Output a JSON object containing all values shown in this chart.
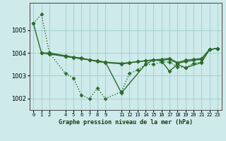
{
  "background_color": "#ceeaea",
  "grid_color": "#a0cccc",
  "line_color": "#2d6b2d",
  "marker_color": "#2d6b2d",
  "title": "Graphe pression niveau de la mer (hPa)",
  "xlim": [
    -0.5,
    23.5
  ],
  "ylim": [
    1001.5,
    1006.2
  ],
  "yticks": [
    1002,
    1003,
    1004,
    1005
  ],
  "xticks": [
    0,
    1,
    2,
    4,
    5,
    6,
    7,
    8,
    9,
    11,
    12,
    13,
    14,
    15,
    16,
    17,
    18,
    19,
    20,
    21,
    22,
    23
  ],
  "series": [
    {
      "x": [
        0,
        1,
        2,
        4,
        5,
        6,
        7,
        8,
        9,
        11,
        12,
        13,
        14,
        15,
        16,
        17,
        18,
        19,
        20,
        21,
        22,
        23
      ],
      "y": [
        1005.3,
        1005.7,
        1004.0,
        1003.1,
        1002.9,
        1002.15,
        1002.0,
        1002.45,
        1002.0,
        1002.3,
        1003.1,
        1003.25,
        1003.5,
        1003.5,
        1003.6,
        1003.6,
        1003.4,
        1003.35,
        1003.55,
        1003.6,
        1004.15,
        1004.2
      ],
      "linestyle": "dotted",
      "marker": "D",
      "markersize": 2.5,
      "linewidth": 1.0
    },
    {
      "x": [
        1,
        2,
        4,
        5,
        6,
        7,
        8,
        9,
        11,
        12,
        13,
        14,
        15,
        16,
        17,
        18,
        19,
        20,
        21,
        22,
        23
      ],
      "y": [
        1004.0,
        1003.95,
        1003.85,
        1003.8,
        1003.75,
        1003.7,
        1003.65,
        1003.6,
        1003.55,
        1003.58,
        1003.62,
        1003.65,
        1003.7,
        1003.68,
        1003.72,
        1003.55,
        1003.62,
        1003.68,
        1003.72,
        1004.15,
        1004.2
      ],
      "linestyle": "solid",
      "marker": "D",
      "markersize": 2.5,
      "linewidth": 1.0
    },
    {
      "x": [
        0,
        1,
        2,
        4,
        9,
        11,
        14,
        15,
        16,
        17,
        18,
        19,
        21,
        22,
        23
      ],
      "y": [
        1005.3,
        1004.0,
        1004.0,
        1003.85,
        1003.6,
        1002.25,
        1003.5,
        1003.7,
        1003.65,
        1003.2,
        1003.5,
        1003.35,
        1003.58,
        1004.15,
        1004.2
      ],
      "linestyle": "solid",
      "marker": "D",
      "markersize": 2.5,
      "linewidth": 1.0
    },
    {
      "x": [
        2,
        4,
        5,
        6,
        7,
        8,
        9,
        11,
        12,
        13,
        14,
        15,
        16,
        17,
        18,
        19,
        20,
        21,
        22,
        23
      ],
      "y": [
        1004.0,
        1003.88,
        1003.82,
        1003.78,
        1003.7,
        1003.62,
        1003.58,
        1003.52,
        1003.56,
        1003.62,
        1003.66,
        1003.7,
        1003.72,
        1003.76,
        1003.58,
        1003.68,
        1003.72,
        1003.76,
        1004.15,
        1004.2
      ],
      "linestyle": "solid",
      "marker": "D",
      "markersize": 2.5,
      "linewidth": 1.0
    }
  ]
}
